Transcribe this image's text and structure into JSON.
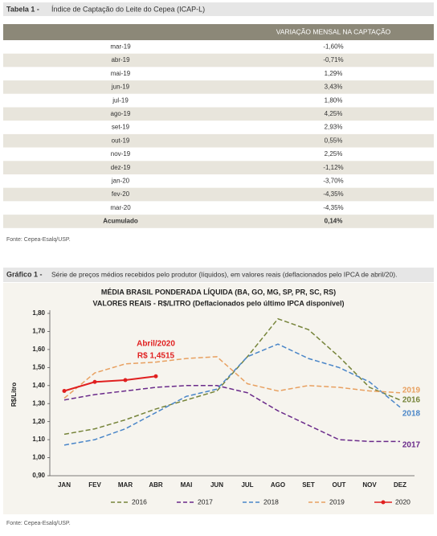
{
  "table_section": {
    "title_prefix": "Tabela 1 -",
    "title": "Índice de Captação do Leite do Cepea (ICAP-L)",
    "header": [
      "",
      "VARIAÇÃO MENSAL NA CAPTAÇÃO"
    ],
    "rows": [
      [
        "mar-19",
        "-1,60%"
      ],
      [
        "abr-19",
        "-0,71%"
      ],
      [
        "mai-19",
        "1,29%"
      ],
      [
        "jun-19",
        "3,43%"
      ],
      [
        "jul-19",
        "1,80%"
      ],
      [
        "ago-19",
        "4,25%"
      ],
      [
        "set-19",
        "2,93%"
      ],
      [
        "out-19",
        "0,55%"
      ],
      [
        "nov-19",
        "2,25%"
      ],
      [
        "dez-19",
        "-1,12%"
      ],
      [
        "jan-20",
        "-3,70%"
      ],
      [
        "fev-20",
        "-4,35%"
      ],
      [
        "mar-20",
        "-4,35%"
      ]
    ],
    "total": [
      "Acumulado",
      "0,14%"
    ],
    "source": "Fonte: Cepea-Esalq/USP."
  },
  "chart_section": {
    "title_prefix": "Gráfico 1 -",
    "title": "Série de preços médios recebidos pelo produtor (líquidos), em valores reais (deflacionados pelo IPCA de abril/20).",
    "source": "Fonte: Cepea-Esalq/USP."
  },
  "chart_data": {
    "type": "line",
    "title": "MÉDIA BRASIL PONDERADA LÍQUIDA (BA, GO, MG, SP, PR, SC, RS)",
    "subtitle": "VALORES REAIS - R$/LITRO (Deflacionados pelo último IPCA disponível)",
    "y_label": "R$/Litro",
    "annotation": [
      "Abril/2020",
      "R$ 1,4515"
    ],
    "categories": [
      "JAN",
      "FEV",
      "MAR",
      "ABR",
      "MAI",
      "JUN",
      "JUL",
      "AGO",
      "SET",
      "OUT",
      "NOV",
      "DEZ"
    ],
    "ylim": [
      0.9,
      1.8
    ],
    "yticks": [
      {
        "value": 0.9,
        "label": "0,90"
      },
      {
        "value": 1.0,
        "label": "1,00"
      },
      {
        "value": 1.1,
        "label": "1,10"
      },
      {
        "value": 1.2,
        "label": "1,20"
      },
      {
        "value": 1.3,
        "label": "1,30"
      },
      {
        "value": 1.4,
        "label": "1,40"
      },
      {
        "value": 1.5,
        "label": "1,50"
      },
      {
        "value": 1.6,
        "label": "1,60"
      },
      {
        "value": 1.7,
        "label": "1,70"
      },
      {
        "value": 1.8,
        "label": "1,80"
      }
    ],
    "series": [
      {
        "name": "2016",
        "color": "#76843a",
        "dash": true,
        "values": [
          1.13,
          1.16,
          1.21,
          1.27,
          1.32,
          1.37,
          1.56,
          1.77,
          1.71,
          1.56,
          1.39,
          1.32
        ]
      },
      {
        "name": "2017",
        "color": "#6a2a8a",
        "dash": true,
        "values": [
          1.32,
          1.35,
          1.37,
          1.39,
          1.4,
          1.4,
          1.36,
          1.26,
          1.18,
          1.1,
          1.09,
          1.09
        ]
      },
      {
        "name": "2018",
        "color": "#4a86c8",
        "dash": true,
        "values": [
          1.07,
          1.1,
          1.16,
          1.25,
          1.34,
          1.38,
          1.56,
          1.63,
          1.55,
          1.5,
          1.42,
          1.28
        ]
      },
      {
        "name": "2019",
        "color": "#e8a060",
        "dash": true,
        "values": [
          1.33,
          1.47,
          1.52,
          1.53,
          1.55,
          1.56,
          1.41,
          1.37,
          1.4,
          1.39,
          1.37,
          1.36
        ]
      },
      {
        "name": "2020",
        "color": "#e02020",
        "dash": false,
        "values": [
          1.37,
          1.42,
          1.43,
          1.4515,
          null,
          null,
          null,
          null,
          null,
          null,
          null,
          null
        ]
      }
    ]
  }
}
